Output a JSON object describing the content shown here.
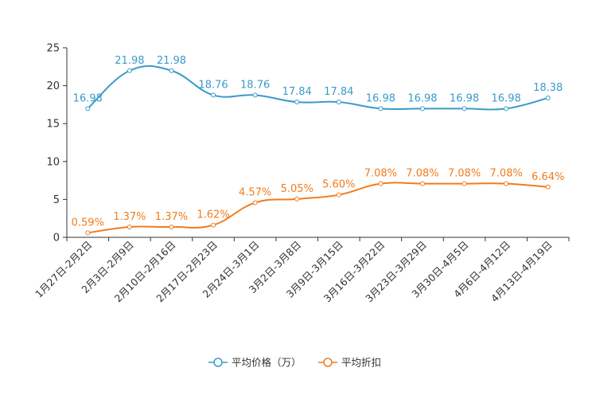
{
  "chart_data": {
    "type": "line",
    "categories": [
      "1月27日-2月2日",
      "2月3日-2月9日",
      "2月10日-2月16日",
      "2月17日-2月23日",
      "2月24日-3月1日",
      "3月2日-3月8日",
      "3月9日-3月15日",
      "3月16日-3月22日",
      "3月23日-3月29日",
      "3月30日-4月5日",
      "4月6日-4月12日",
      "4月13日-4月19日"
    ],
    "series": [
      {
        "name": "平均价格（万）",
        "color": "#3a9bc9",
        "values": [
          16.98,
          21.98,
          21.98,
          18.76,
          18.76,
          17.84,
          17.84,
          16.98,
          16.98,
          16.98,
          16.98,
          18.38
        ],
        "labels": [
          "16.98",
          "21.98",
          "21.98",
          "18.76",
          "18.76",
          "17.84",
          "17.84",
          "16.98",
          "16.98",
          "16.98",
          "16.98",
          "18.38"
        ]
      },
      {
        "name": "平均折扣",
        "color": "#f07c1e",
        "values": [
          0.59,
          1.37,
          1.37,
          1.62,
          4.57,
          5.05,
          5.6,
          7.08,
          7.08,
          7.08,
          7.08,
          6.64
        ],
        "labels": [
          "0.59%",
          "1.37%",
          "1.37%",
          "1.62%",
          "4.57%",
          "5.05%",
          "5.60%",
          "7.08%",
          "7.08%",
          "7.08%",
          "7.08%",
          "6.64%"
        ]
      }
    ],
    "ylim": [
      0,
      25
    ],
    "yticks": [
      0,
      5,
      10,
      15,
      20,
      25
    ],
    "ytick_labels": [
      "0",
      "5",
      "10",
      "15",
      "20",
      "25"
    ],
    "title": "",
    "xlabel": "",
    "ylabel": "",
    "grid": false,
    "legend_position": "bottom-center"
  }
}
